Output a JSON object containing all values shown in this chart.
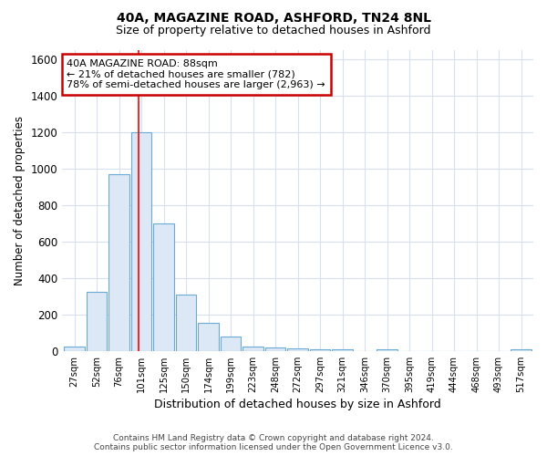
{
  "title1": "40A, MAGAZINE ROAD, ASHFORD, TN24 8NL",
  "title2": "Size of property relative to detached houses in Ashford",
  "xlabel": "Distribution of detached houses by size in Ashford",
  "ylabel": "Number of detached properties",
  "categories": [
    "27sqm",
    "52sqm",
    "76sqm",
    "101sqm",
    "125sqm",
    "150sqm",
    "174sqm",
    "199sqm",
    "223sqm",
    "248sqm",
    "272sqm",
    "297sqm",
    "321sqm",
    "346sqm",
    "370sqm",
    "395sqm",
    "419sqm",
    "444sqm",
    "468sqm",
    "493sqm",
    "517sqm"
  ],
  "values": [
    25,
    325,
    970,
    1200,
    700,
    310,
    155,
    80,
    25,
    18,
    15,
    10,
    10,
    0,
    10,
    0,
    0,
    0,
    0,
    0,
    10
  ],
  "bar_color": "#dce8f5",
  "bar_edge_color": "#6aaad4",
  "ylim": [
    0,
    1650
  ],
  "yticks": [
    0,
    200,
    400,
    600,
    800,
    1000,
    1200,
    1400,
    1600
  ],
  "red_line_x": 2.88,
  "annotation_line1": "40A MAGAZINE ROAD: 88sqm",
  "annotation_line2": "← 21% of detached houses are smaller (782)",
  "annotation_line3": "78% of semi-detached houses are larger (2,963) →",
  "annotation_box_color": "#ffffff",
  "annotation_box_edge_color": "#cc0000",
  "footer_line1": "Contains HM Land Registry data © Crown copyright and database right 2024.",
  "footer_line2": "Contains public sector information licensed under the Open Government Licence v3.0.",
  "bg_color": "#ffffff",
  "grid_color": "#d8dff0",
  "title_fontsize": 10,
  "subtitle_fontsize": 9
}
